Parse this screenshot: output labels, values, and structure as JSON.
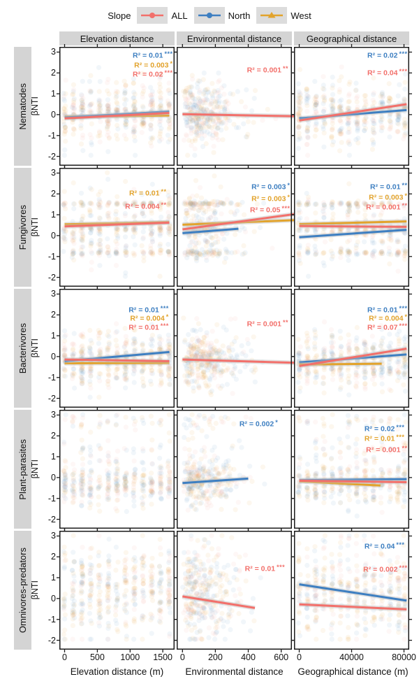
{
  "palette": {
    "ALL": "#f2706b",
    "North": "#3e7fc1",
    "West": "#e2a32c",
    "scatter_blue": "#5b93c4",
    "scatter_orange": "#eda63f",
    "scatter_pink": "#f5a09c",
    "strip_bg": "#d4d4d4",
    "key_bg": "#dcdcdc",
    "panel_border": "#1b1b1b"
  },
  "legend": {
    "title": "Slope",
    "items": [
      {
        "label": "ALL",
        "series": "ALL",
        "marker": "circle"
      },
      {
        "label": "North",
        "series": "North",
        "marker": "circle"
      },
      {
        "label": "West",
        "series": "West",
        "marker": "triangle"
      }
    ]
  },
  "chart_data": {
    "type": "scatter",
    "y_axis": {
      "label": "βNTI",
      "ticks": [
        3,
        2,
        1,
        0,
        -1,
        -2
      ],
      "min": -2.45,
      "max": 3.25
    },
    "columns": [
      {
        "header": "Elevation distance",
        "axis_label": "Elevation distance (m)",
        "ticks": [
          0,
          500,
          1000,
          1500
        ],
        "min": -80,
        "max": 1680,
        "scatter_x": {
          "mode": "stripes",
          "positions": [
            0,
            133,
            266,
            399,
            532,
            665,
            798,
            931,
            1064,
            1197,
            1330,
            1463,
            1596
          ],
          "jitter": 18,
          "count": 420
        }
      },
      {
        "header": "Environmental distance",
        "axis_label": "Environmental distance",
        "ticks": [
          0,
          200,
          400,
          600
        ],
        "min": -35,
        "max": 665,
        "scatter_x": {
          "mode": "cloud",
          "scale": 160,
          "tail": 40,
          "max": 650,
          "count": 340
        }
      },
      {
        "header": "Geographical distance",
        "axis_label": "Geographical distance (m)",
        "ticks": [
          0,
          40000,
          80000
        ],
        "min": -4000,
        "max": 84000,
        "scatter_x": {
          "mode": "stripes",
          "positions": [
            0,
            6300,
            12600,
            18900,
            25200,
            31500,
            37800,
            44100,
            50400,
            56700,
            63000,
            69300,
            75600,
            80500
          ],
          "jitter": 900,
          "count": 400
        }
      }
    ],
    "rows": [
      {
        "label": "Nematodes",
        "scatter_y": {
          "mode": "gauss",
          "mean": 0.05,
          "sd": 0.75
        }
      },
      {
        "label": "Fungivores",
        "scatter_y": {
          "mode": "mix",
          "components": [
            {
              "w": 0.2,
              "mean": 1.52,
              "sd": 0.05
            },
            {
              "w": 0.18,
              "mean": 0.3,
              "sd": 0.12
            },
            {
              "w": 0.16,
              "mean": -0.82,
              "sd": 0.07
            },
            {
              "w": 0.46,
              "mean": 0.4,
              "sd": 0.9
            }
          ]
        }
      },
      {
        "label": "Bacterivores",
        "scatter_y": {
          "mode": "gauss",
          "mean": -0.12,
          "sd": 0.68
        }
      },
      {
        "label": "Plant-parasites",
        "scatter_y": {
          "mode": "mix",
          "components": [
            {
              "w": 0.82,
              "mean": -0.25,
              "sd": 0.55
            },
            {
              "w": 0.09,
              "mean": 1.4,
              "sd": 0.35
            },
            {
              "w": 0.09,
              "mean": 2.7,
              "sd": 0.2
            }
          ]
        }
      },
      {
        "label": "Omnivores-predators",
        "scatter_y": {
          "mode": "gauss",
          "mean": 0.35,
          "sd": 1.1
        }
      }
    ],
    "scatter_style": {
      "mix": {
        "blue": 0.38,
        "orange": 0.38,
        "pink": 0.24
      },
      "radius": 3.6,
      "opacity": 0.085
    },
    "panels": [
      {
        "row": "Nematodes",
        "col": "Elevation distance",
        "lines": [
          {
            "series": "West",
            "x": [
              0,
              1600
            ],
            "y": [
              -0.1,
              -0.04
            ]
          },
          {
            "series": "North",
            "x": [
              0,
              1600
            ],
            "y": [
              -0.14,
              0.15
            ]
          },
          {
            "series": "ALL",
            "x": [
              0,
              1600
            ],
            "y": [
              -0.18,
              0.08
            ]
          }
        ],
        "annotations": [
          {
            "series": "North",
            "text": "R² = 0.01 ***",
            "x": 0.985,
            "y": 0.03
          },
          {
            "series": "West",
            "text": "R² = 0.003 *",
            "x": 0.985,
            "y": 0.11
          },
          {
            "series": "ALL",
            "text": "R² = 0.02 ***",
            "x": 0.985,
            "y": 0.19
          }
        ]
      },
      {
        "row": "Nematodes",
        "col": "Environmental distance",
        "lines": [
          {
            "series": "ALL",
            "x": [
              0,
              700
            ],
            "y": [
              0.02,
              -0.08
            ]
          }
        ],
        "annotations": [
          {
            "series": "ALL",
            "text": "R² = 0.001 **",
            "x": 0.97,
            "y": 0.155
          }
        ]
      },
      {
        "row": "Nematodes",
        "col": "Geographical distance",
        "lines": [
          {
            "series": "North",
            "x": [
              0,
              82000
            ],
            "y": [
              -0.18,
              0.22
            ]
          },
          {
            "series": "ALL",
            "x": [
              0,
              82000
            ],
            "y": [
              -0.28,
              0.5
            ]
          }
        ],
        "annotations": [
          {
            "series": "North",
            "text": "R² = 0.02 ***",
            "x": 0.985,
            "y": 0.03
          },
          {
            "series": "ALL",
            "text": "R² = 0.04 ***",
            "x": 0.985,
            "y": 0.175
          }
        ]
      },
      {
        "row": "Fungivores",
        "col": "Elevation distance",
        "lines": [
          {
            "series": "West",
            "x": [
              0,
              1600
            ],
            "y": [
              0.54,
              0.64
            ]
          },
          {
            "series": "ALL",
            "x": [
              0,
              1600
            ],
            "y": [
              0.44,
              0.62
            ]
          }
        ],
        "annotations": [
          {
            "series": "West",
            "text": "R² = 0.01 **",
            "x": 0.93,
            "y": 0.17
          },
          {
            "series": "ALL",
            "text": "R² = 0.004 **",
            "x": 0.93,
            "y": 0.285
          }
        ]
      },
      {
        "row": "Fungivores",
        "col": "Environmental distance",
        "lines": [
          {
            "series": "North",
            "x": [
              0,
              340
            ],
            "y": [
              0.12,
              0.33
            ]
          },
          {
            "series": "West",
            "x": [
              0,
              700
            ],
            "y": [
              0.52,
              0.75
            ]
          },
          {
            "series": "ALL",
            "x": [
              0,
              700
            ],
            "y": [
              0.3,
              1.05
            ]
          }
        ],
        "annotations": [
          {
            "series": "North",
            "text": "R² = 0.003 *",
            "x": 0.985,
            "y": 0.12
          },
          {
            "series": "West",
            "text": "R² = 0.003 *",
            "x": 0.985,
            "y": 0.215
          },
          {
            "series": "ALL",
            "text": "R² = 0.05 ***",
            "x": 0.985,
            "y": 0.31
          }
        ]
      },
      {
        "row": "Fungivores",
        "col": "Geographical distance",
        "lines": [
          {
            "series": "North",
            "x": [
              0,
              82000
            ],
            "y": [
              -0.08,
              0.28
            ]
          },
          {
            "series": "West",
            "x": [
              0,
              82000
            ],
            "y": [
              0.55,
              0.68
            ]
          },
          {
            "series": "ALL",
            "x": [
              0,
              82000
            ],
            "y": [
              0.46,
              0.42
            ]
          }
        ],
        "annotations": [
          {
            "series": "North",
            "text": "R² = 0.01 **",
            "x": 0.985,
            "y": 0.12
          },
          {
            "series": "West",
            "text": "R² = 0.003 *",
            "x": 0.985,
            "y": 0.205
          },
          {
            "series": "ALL",
            "text": "R² = 0.001 **",
            "x": 0.985,
            "y": 0.29
          }
        ]
      },
      {
        "row": "Bacterivores",
        "col": "Elevation distance",
        "lines": [
          {
            "series": "West",
            "x": [
              0,
              1600
            ],
            "y": [
              -0.32,
              -0.3
            ]
          },
          {
            "series": "North",
            "x": [
              0,
              1600
            ],
            "y": [
              -0.22,
              0.22
            ]
          },
          {
            "series": "ALL",
            "x": [
              0,
              1600
            ],
            "y": [
              -0.14,
              -0.22
            ]
          }
        ],
        "annotations": [
          {
            "series": "North",
            "text": "R² = 0.01 ***",
            "x": 0.95,
            "y": 0.135
          },
          {
            "series": "West",
            "text": "R² = 0.004 *",
            "x": 0.95,
            "y": 0.205
          },
          {
            "series": "ALL",
            "text": "R² = 0.01 ***",
            "x": 0.95,
            "y": 0.28
          }
        ]
      },
      {
        "row": "Bacterivores",
        "col": "Environmental distance",
        "lines": [
          {
            "series": "ALL",
            "x": [
              0,
              700
            ],
            "y": [
              -0.14,
              -0.3
            ]
          }
        ],
        "annotations": [
          {
            "series": "ALL",
            "text": "R² = 0.001 **",
            "x": 0.97,
            "y": 0.25
          }
        ]
      },
      {
        "row": "Bacterivores",
        "col": "Geographical distance",
        "lines": [
          {
            "series": "North",
            "x": [
              0,
              82000
            ],
            "y": [
              -0.28,
              0.1
            ]
          },
          {
            "series": "West",
            "x": [
              0,
              63000
            ],
            "y": [
              -0.38,
              -0.34
            ]
          },
          {
            "series": "ALL",
            "x": [
              0,
              82000
            ],
            "y": [
              -0.45,
              0.38
            ]
          }
        ],
        "annotations": [
          {
            "series": "North",
            "text": "R² = 0.01 ***",
            "x": 0.985,
            "y": 0.135
          },
          {
            "series": "West",
            "text": "R² = 0.004 *",
            "x": 0.985,
            "y": 0.205
          },
          {
            "series": "ALL",
            "text": "R² = 0.07 ***",
            "x": 0.985,
            "y": 0.285
          }
        ]
      },
      {
        "row": "Plant-parasites",
        "col": "Elevation distance",
        "lines": [],
        "annotations": []
      },
      {
        "row": "Plant-parasites",
        "col": "Environmental distance",
        "lines": [
          {
            "series": "North",
            "x": [
              0,
              400
            ],
            "y": [
              -0.26,
              -0.05
            ]
          }
        ],
        "annotations": [
          {
            "series": "North",
            "text": "R² = 0.002 *",
            "x": 0.88,
            "y": 0.075
          }
        ]
      },
      {
        "row": "Plant-parasites",
        "col": "Geographical distance",
        "lines": [
          {
            "series": "North",
            "x": [
              0,
              82000
            ],
            "y": [
              -0.12,
              -0.08
            ]
          },
          {
            "series": "West",
            "x": [
              0,
              62000
            ],
            "y": [
              -0.18,
              -0.38
            ]
          },
          {
            "series": "ALL",
            "x": [
              0,
              82000
            ],
            "y": [
              -0.15,
              -0.22
            ]
          }
        ],
        "annotations": [
          {
            "series": "North",
            "text": "R² = 0.02 ***",
            "x": 0.96,
            "y": 0.115
          },
          {
            "series": "West",
            "text": "R² = 0.01 ***",
            "x": 0.96,
            "y": 0.2
          },
          {
            "series": "ALL",
            "text": "R² = 0.001 **",
            "x": 0.985,
            "y": 0.295
          }
        ]
      },
      {
        "row": "Omnivores-predators",
        "col": "Elevation distance",
        "lines": [],
        "annotations": []
      },
      {
        "row": "Omnivores-predators",
        "col": "Environmental distance",
        "lines": [
          {
            "series": "ALL",
            "x": [
              0,
              440
            ],
            "y": [
              0.1,
              -0.45
            ]
          }
        ],
        "annotations": [
          {
            "series": "ALL",
            "text": "R² = 0.01 ***",
            "x": 0.94,
            "y": 0.275
          }
        ]
      },
      {
        "row": "Omnivores-predators",
        "col": "Geographical distance",
        "lines": [
          {
            "series": "North",
            "x": [
              0,
              82000
            ],
            "y": [
              0.68,
              -0.1
            ]
          },
          {
            "series": "ALL",
            "x": [
              0,
              82000
            ],
            "y": [
              -0.28,
              -0.52
            ]
          }
        ],
        "annotations": [
          {
            "series": "North",
            "text": "R² = 0.04 ***",
            "x": 0.96,
            "y": 0.085
          },
          {
            "series": "ALL",
            "text": "R² = 0.002 ***",
            "x": 0.985,
            "y": 0.285
          }
        ]
      }
    ]
  }
}
